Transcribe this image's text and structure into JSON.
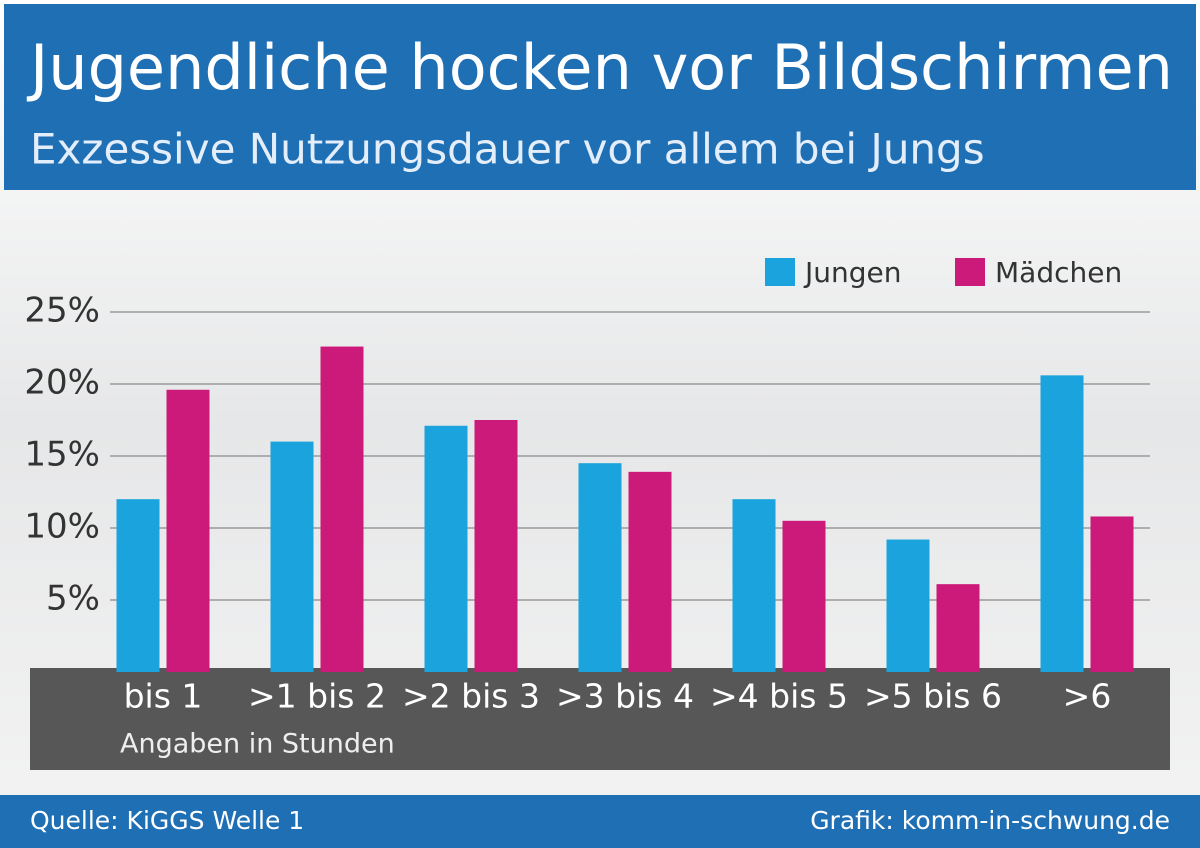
{
  "chart_data": {
    "type": "bar",
    "title": "Jugendliche hocken vor Bildschirmen",
    "subtitle": "Exzessive Nutzungsdauer vor allem bei Jungs",
    "x_label": "Angaben in Stunden",
    "source": "Quelle: KiGGS Welle 1",
    "credit": "Grafik: komm-in-schwung.de",
    "categories": [
      "bis 1",
      ">1 bis 2",
      ">2 bis 3",
      ">3 bis 4",
      ">4 bis 5",
      ">5 bis 6",
      ">6"
    ],
    "series": [
      {
        "name": "Jungen",
        "color": "#1aa3dd",
        "values": [
          12,
          16,
          17.1,
          14.5,
          12,
          9.2,
          20.6
        ]
      },
      {
        "name": "Mädchen",
        "color": "#cc1a7a",
        "values": [
          19.6,
          22.6,
          17.5,
          13.9,
          10.5,
          6.1,
          10.8
        ]
      }
    ],
    "ylim": [
      0,
      25
    ],
    "yticks": [
      {
        "value": 5,
        "label": "5%"
      },
      {
        "value": 10,
        "label": "10%"
      },
      {
        "value": 15,
        "label": "15%"
      },
      {
        "value": 20,
        "label": "20%"
      },
      {
        "value": 25,
        "label": "25%"
      }
    ],
    "grid": true,
    "legend": "top-right"
  }
}
